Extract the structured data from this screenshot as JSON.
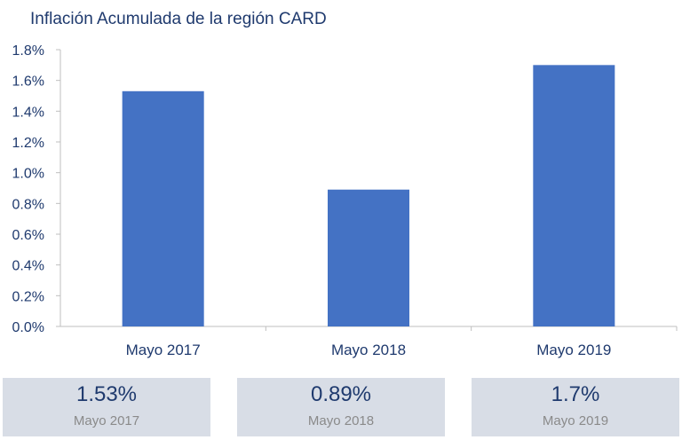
{
  "chart_data": {
    "type": "bar",
    "title": "Inflación Acumulada de la región CARD",
    "categories": [
      "Mayo 2017",
      "Mayo 2018",
      "Mayo 2019"
    ],
    "values": [
      1.53,
      0.89,
      1.7
    ],
    "ylim": [
      0,
      1.8
    ],
    "yticks": [
      "0.0%",
      "0.2%",
      "0.4%",
      "0.6%",
      "0.8%",
      "1.0%",
      "1.2%",
      "1.4%",
      "1.6%",
      "1.8%"
    ],
    "xlabel": "",
    "ylabel": "",
    "grid": false,
    "bar_color": "#4472c4"
  },
  "summary_cards": [
    {
      "value": "1.53%",
      "label": "Mayo 2017"
    },
    {
      "value": "0.89%",
      "label": "Mayo 2018"
    },
    {
      "value": "1.7%",
      "label": "Mayo 2019"
    }
  ]
}
